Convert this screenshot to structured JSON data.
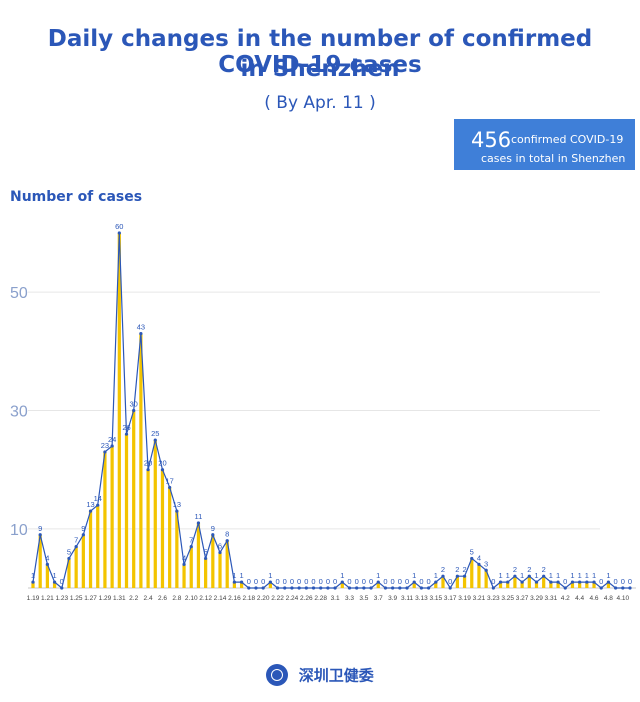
{
  "header": {
    "title_line1": "Daily changes in the number of confirmed COVID-19 cases",
    "title_line2": "in Shenzhen",
    "subtitle": "( By Apr. 11 )"
  },
  "total": {
    "value": "456",
    "label_line1": "confirmed COVID-19",
    "label_line2": "cases in total in Shenzhen"
  },
  "footer": {
    "org_name": "深圳卫健委",
    "logo_icon": "health-commission-logo-icon"
  },
  "colors": {
    "accent": "#2b57b8",
    "bar": "#f3c400",
    "line": "#2b57b8",
    "box": "#3f7fd8"
  },
  "chart_data": {
    "type": "bar",
    "ylabel": "Number of cases",
    "yticks": [
      10,
      30,
      50
    ],
    "ylim": [
      0,
      62
    ],
    "grid": true,
    "line_overlay": true,
    "categories": [
      "1.19",
      "1.20",
      "1.21",
      "1.22",
      "1.23",
      "1.24",
      "1.25",
      "1.26",
      "1.27",
      "1.28",
      "1.29",
      "1.30",
      "1.31",
      "2.1",
      "2.2",
      "2.3",
      "2.4",
      "2.5",
      "2.6",
      "2.7",
      "2.8",
      "2.9",
      "2.10",
      "2.11",
      "2.12",
      "2.13",
      "2.14",
      "2.15",
      "2.16",
      "2.17",
      "2.18",
      "2.19",
      "2.20",
      "2.21",
      "2.22",
      "2.23",
      "2.24",
      "2.25",
      "2.26",
      "2.27",
      "2.28",
      "2.29",
      "3.1",
      "3.2",
      "3.3",
      "3.4",
      "3.5",
      "3.6",
      "3.7",
      "3.8",
      "3.9",
      "3.10",
      "3.11",
      "3.12",
      "3.13",
      "3.14",
      "3.15",
      "3.16",
      "3.17",
      "3.18",
      "3.19",
      "3.20",
      "3.21",
      "3.22",
      "3.23",
      "3.24",
      "3.25",
      "3.26",
      "3.27",
      "3.28",
      "3.29",
      "3.30",
      "3.31",
      "4.1",
      "4.2",
      "4.3",
      "4.4",
      "4.5",
      "4.6",
      "4.7",
      "4.8",
      "4.9",
      "4.10",
      "4.11"
    ],
    "values": [
      1,
      9,
      4,
      1,
      0,
      5,
      7,
      9,
      13,
      14,
      23,
      24,
      60,
      26,
      30,
      43,
      20,
      25,
      20,
      17,
      13,
      4,
      7,
      11,
      5,
      9,
      6,
      8,
      1,
      1,
      0,
      0,
      0,
      1,
      0,
      0,
      0,
      0,
      0,
      0,
      0,
      0,
      0,
      1,
      0,
      0,
      0,
      0,
      1,
      0,
      0,
      0,
      0,
      1,
      0,
      0,
      1,
      2,
      0,
      2,
      2,
      5,
      4,
      3,
      0,
      1,
      1,
      2,
      1,
      2,
      1,
      2,
      1,
      1,
      0,
      1,
      1,
      1,
      1,
      0,
      1,
      0,
      0,
      0
    ],
    "x_tick_labels": [
      "1.19",
      "1.21",
      "1.23",
      "1.25",
      "1.27",
      "1.29",
      "1.31",
      "2.2",
      "2.4",
      "2.6",
      "2.8",
      "2.10",
      "2.12",
      "2.14",
      "2.16",
      "2.18",
      "2.20",
      "2.22",
      "2.24",
      "2.26",
      "2.28",
      "3.1",
      "3.3",
      "3.5",
      "3.7",
      "3.9",
      "3.11",
      "3.13",
      "3.15",
      "3.17",
      "3.19",
      "3.21",
      "3.23",
      "3.25",
      "3.27",
      "3.29",
      "3.31",
      "4.2",
      "4.4",
      "4.6",
      "4.8",
      "4.10"
    ]
  }
}
